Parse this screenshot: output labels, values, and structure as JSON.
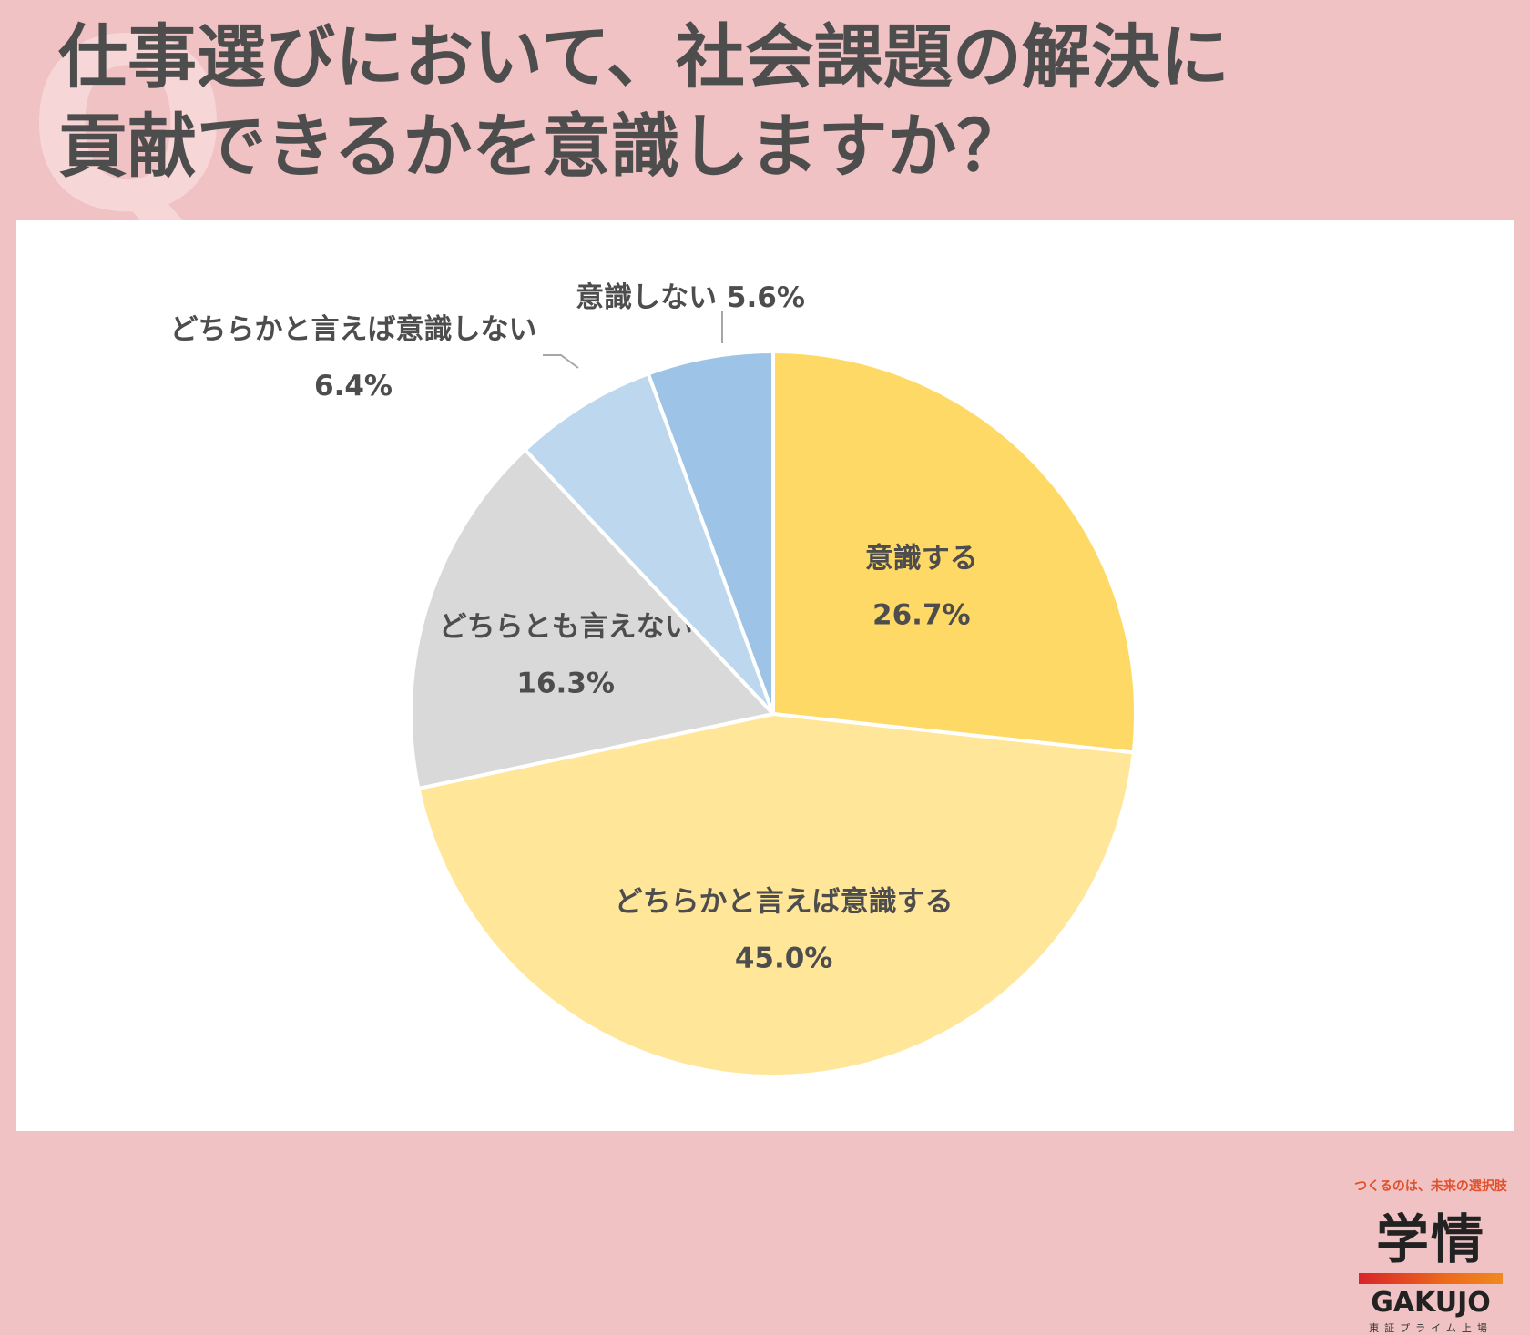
{
  "header": {
    "q_mark": "Q",
    "title_line1": "仕事選びにおいて、社会課題の解決に",
    "title_line2": "貢献できるかを意識しますか？"
  },
  "chart_data": {
    "type": "pie",
    "title": "仕事選びにおいて、社会課題の解決に貢献できるかを意識しますか？",
    "start": "12 o'clock",
    "direction": "clockwise",
    "slices": [
      {
        "label": "意識する",
        "value": 26.7,
        "value_label": "26.7%",
        "color": "#ffd966"
      },
      {
        "label": "どちらかと言えば意識する",
        "value": 45.0,
        "value_label": "45.0%",
        "color": "#ffe699"
      },
      {
        "label": "どちらとも言えない",
        "value": 16.3,
        "value_label": "16.3%",
        "color": "#d9d9d9"
      },
      {
        "label": "どちらかと言えば意識しない",
        "value": 6.4,
        "value_label": "6.4%",
        "color": "#bdd7ee"
      },
      {
        "label": "意識しない",
        "value": 5.6,
        "value_label": "5.6%",
        "color": "#9dc3e6"
      }
    ]
  },
  "brand": {
    "tagline": "つくるのは、未来の選択肢",
    "name_ja": "学情",
    "name_en": "GAKUJO",
    "sub": "東証プライム上場"
  }
}
